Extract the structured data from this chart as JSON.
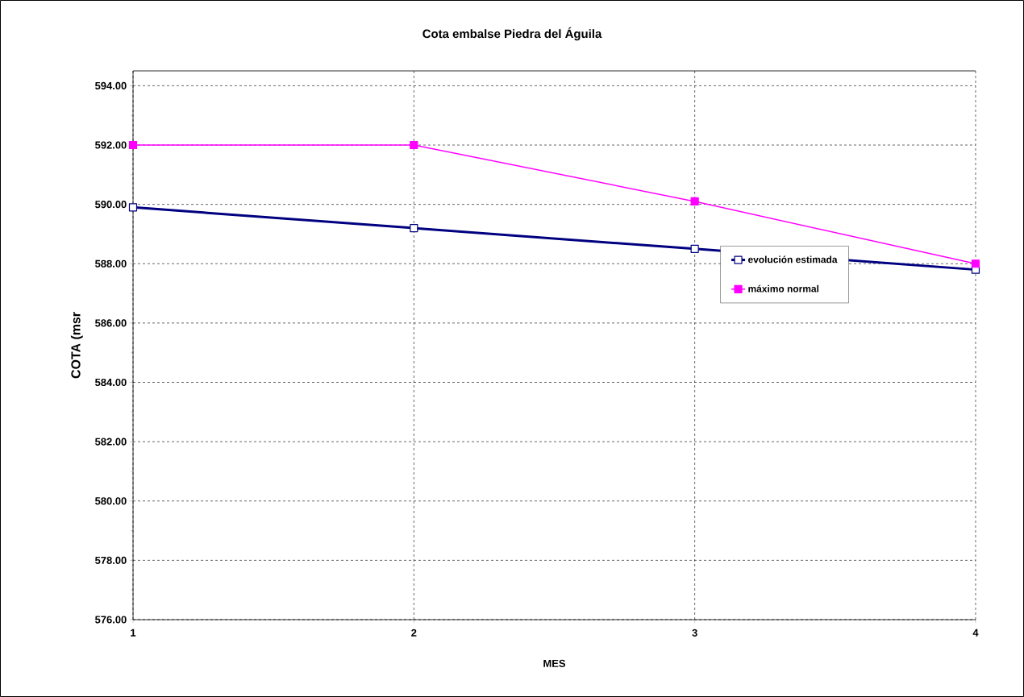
{
  "chart_data": {
    "type": "line",
    "title": "Cota embalse Piedra del Águila",
    "xlabel": "MES",
    "ylabel": "COTA (msr",
    "x": [
      1,
      2,
      3,
      4
    ],
    "series": [
      {
        "name": "evolución estimada",
        "color": "#000080",
        "values": [
          589.9,
          589.2,
          588.5,
          587.8
        ]
      },
      {
        "name": "máximo normal",
        "color": "#ff00ff",
        "values": [
          592.0,
          592.0,
          590.1,
          588.0
        ]
      }
    ],
    "xlim": [
      1,
      4
    ],
    "xticks": [
      1,
      2,
      3,
      4
    ],
    "ylim": [
      576,
      594.5
    ],
    "yticks": [
      {
        "value": 576,
        "label": "576.00"
      },
      {
        "value": 578,
        "label": "578.00"
      },
      {
        "value": 580,
        "label": "580.00"
      },
      {
        "value": 582,
        "label": "582.00"
      },
      {
        "value": 584,
        "label": "584.00"
      },
      {
        "value": 586,
        "label": "586.00"
      },
      {
        "value": 588,
        "label": "588.00"
      },
      {
        "value": 590,
        "label": "590.00"
      },
      {
        "value": 592,
        "label": "592.00"
      },
      {
        "value": 594,
        "label": "594.00"
      }
    ],
    "grid": true,
    "legend": "right",
    "marker": "square",
    "line_style": "solid"
  }
}
